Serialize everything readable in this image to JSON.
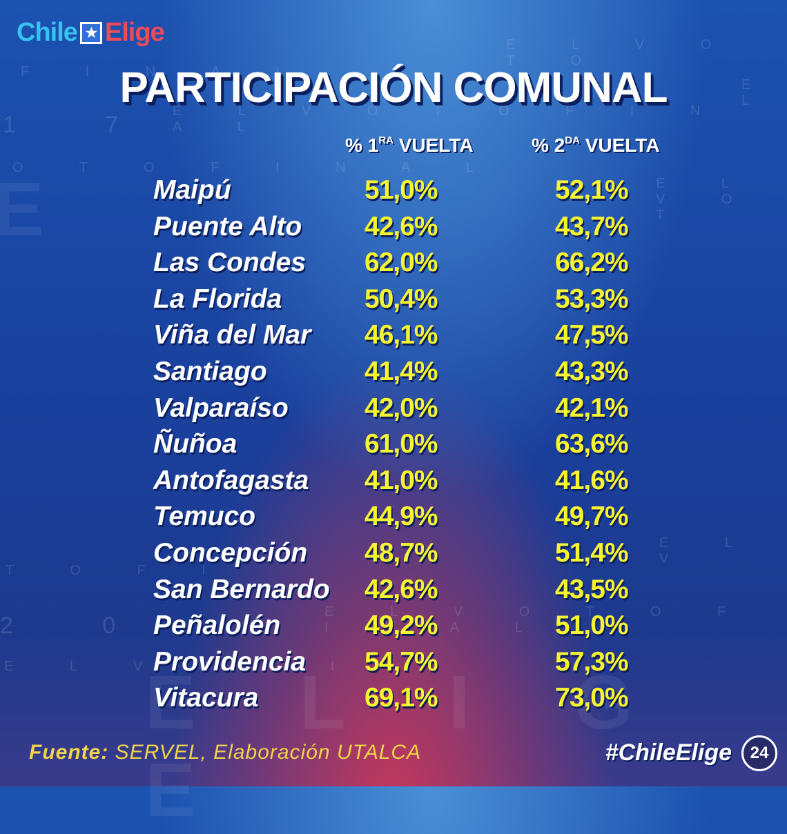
{
  "brand": {
    "logo_left": "Chile",
    "logo_right": "Elige",
    "logo_star": "★"
  },
  "title": "PARTICIPACIÓN COMUNAL",
  "columns": {
    "first": {
      "prefix": "% 1",
      "sup": "RA",
      "suffix": " VUELTA"
    },
    "second": {
      "prefix": "% 2",
      "sup": "DA",
      "suffix": " VUELTA"
    }
  },
  "rows": [
    {
      "comuna": "Maipú",
      "v1": "51,0%",
      "v2": "52,1%"
    },
    {
      "comuna": "Puente Alto",
      "v1": "42,6%",
      "v2": "43,7%"
    },
    {
      "comuna": "Las Condes",
      "v1": "62,0%",
      "v2": "66,2%"
    },
    {
      "comuna": "La Florida",
      "v1": "50,4%",
      "v2": "53,3%"
    },
    {
      "comuna": "Viña del Mar",
      "v1": "46,1%",
      "v2": "47,5%"
    },
    {
      "comuna": "Santiago",
      "v1": "41,4%",
      "v2": "43,3%"
    },
    {
      "comuna": "Valparaíso",
      "v1": "42,0%",
      "v2": "42,1%"
    },
    {
      "comuna": "Ñuñoa",
      "v1": "61,0%",
      "v2": "63,6%"
    },
    {
      "comuna": "Antofagasta",
      "v1": "41,0%",
      "v2": "41,6%"
    },
    {
      "comuna": "Temuco",
      "v1": "44,9%",
      "v2": "49,7%"
    },
    {
      "comuna": "Concepción",
      "v1": "48,7%",
      "v2": "51,4%"
    },
    {
      "comuna": "San Bernardo",
      "v1": "42,6%",
      "v2": "43,5%"
    },
    {
      "comuna": "Peñalolén",
      "v1": "49,2%",
      "v2": "51,0%"
    },
    {
      "comuna": "Providencia",
      "v1": "54,7%",
      "v2": "57,3%"
    },
    {
      "comuna": "Vitacura",
      "v1": "69,1%",
      "v2": "73,0%"
    }
  ],
  "footer": {
    "source_label": "Fuente:",
    "source_text": " SERVEL, Elaboración UTALCA",
    "hashtag": "#ChileElige",
    "badge": "24"
  },
  "background_text": {
    "a": "E L V O T O",
    "b": "F I N A L",
    "c": "E L V O T O F I N A L",
    "d": "O T O F I N A L",
    "e": "E L V O T",
    "f": "E L V",
    "g": "T O F I",
    "h": "E L V O T O F I N A L",
    "i": "E L V O F I",
    "n1": "1 7",
    "n2": "2 0",
    "big1": "E",
    "big2": "E L I G E"
  }
}
